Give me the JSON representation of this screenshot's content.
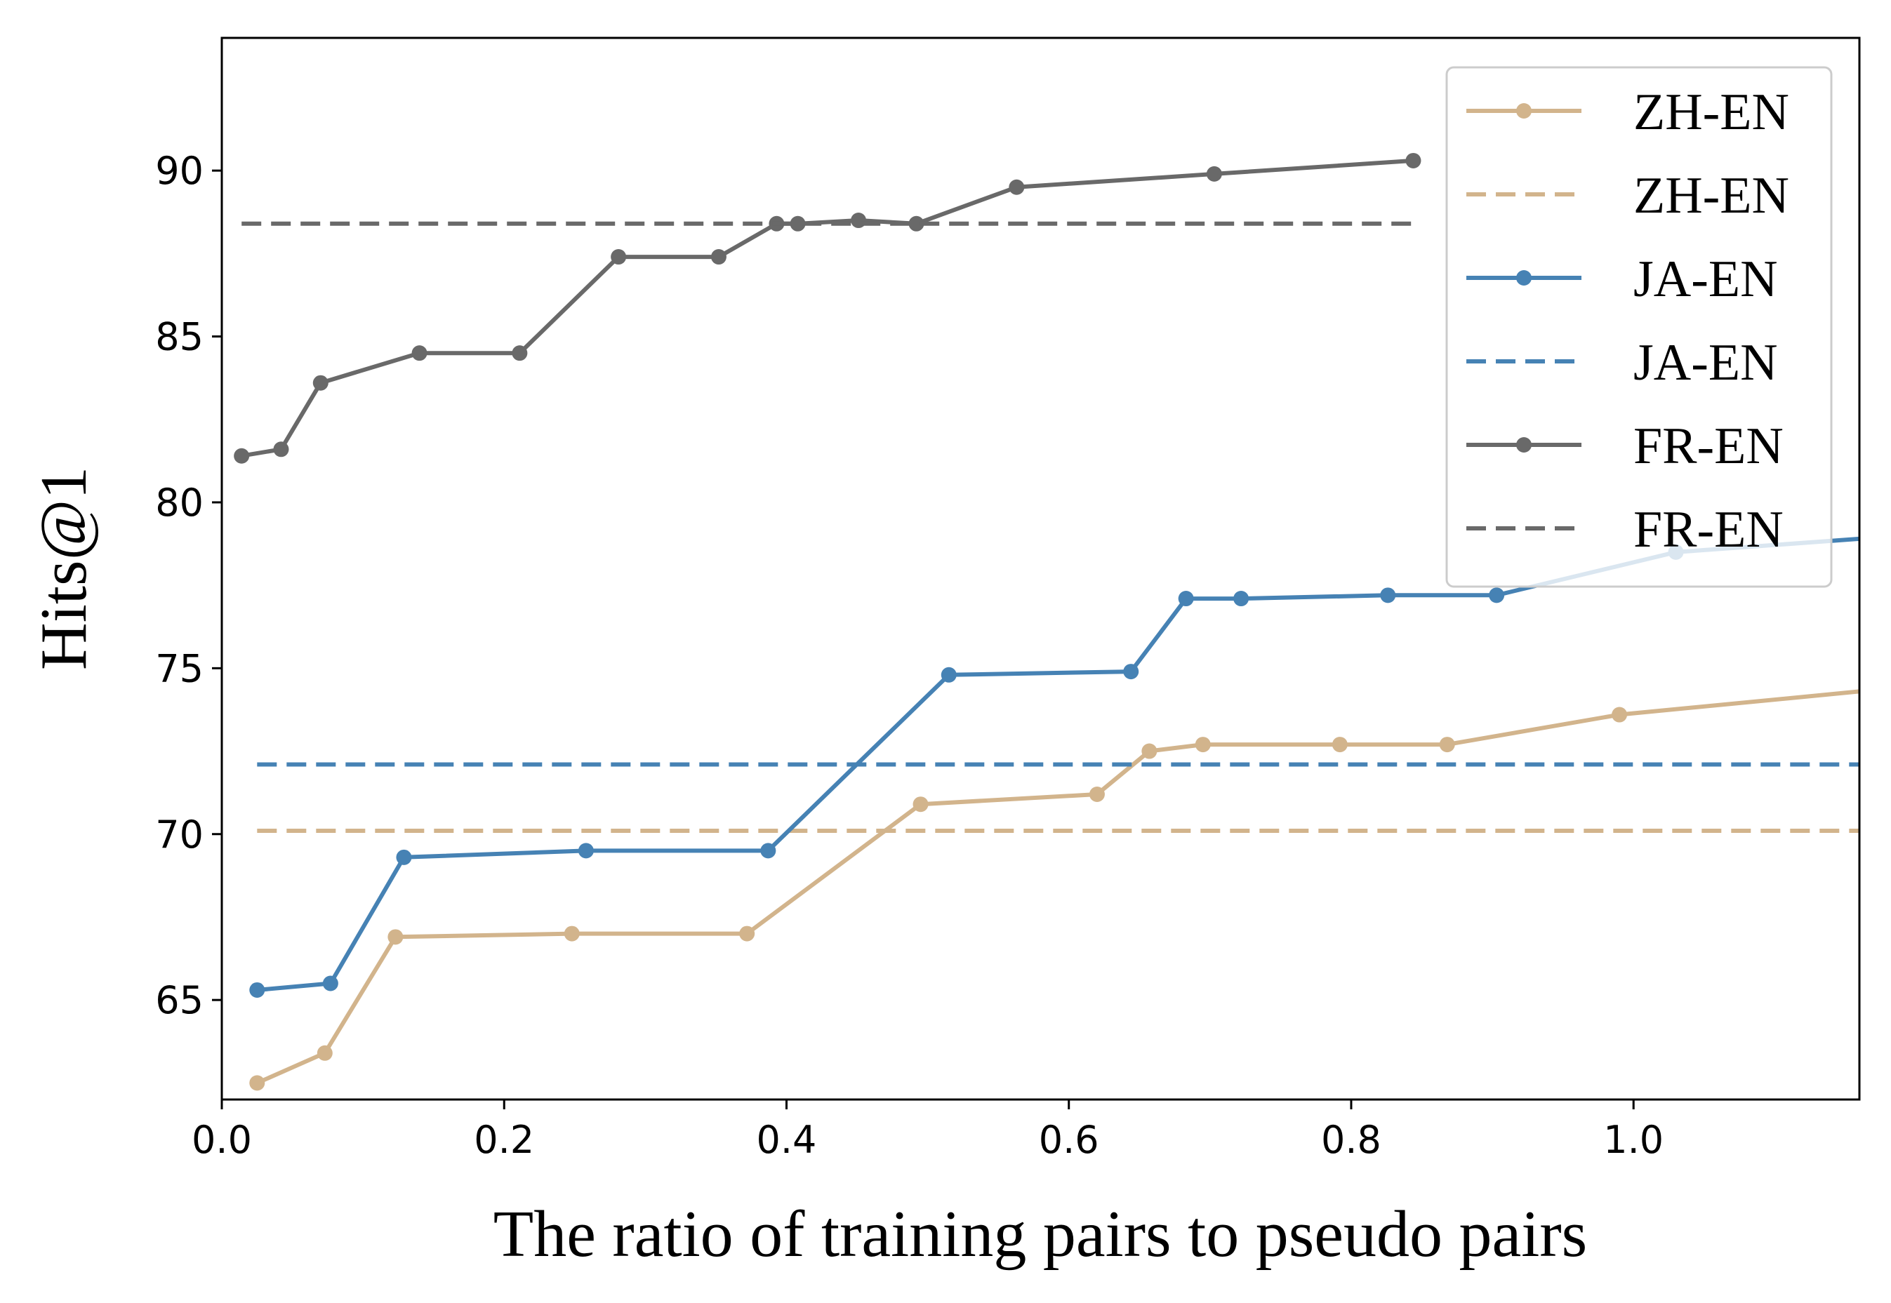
{
  "chart_data": {
    "type": "line",
    "xlabel": "The ratio of training pairs to pseudo pairs",
    "ylabel": "Hits@1",
    "xlim": [
      0.0,
      1.16
    ],
    "ylim": [
      62.0,
      94.0
    ],
    "xticks": [
      0.0,
      0.2,
      0.4,
      0.6,
      0.8,
      1.0
    ],
    "xtick_labels": [
      "0.0",
      "0.2",
      "0.4",
      "0.6",
      "0.8",
      "1.0"
    ],
    "yticks": [
      65,
      70,
      75,
      80,
      85,
      90
    ],
    "ytick_labels": [
      "65",
      "70",
      "75",
      "80",
      "85",
      "90"
    ],
    "grid": false,
    "legend_position": "top-right",
    "series": [
      {
        "name": "ZH-EN",
        "style": "solid-marker",
        "color": "#d2b48c",
        "x": [
          0.025,
          0.073,
          0.123,
          0.248,
          0.372,
          0.495,
          0.62,
          0.657,
          0.695,
          0.792,
          0.868,
          0.99,
          1.16
        ],
        "y": [
          62.5,
          63.4,
          66.9,
          67.0,
          67.0,
          70.9,
          71.2,
          72.5,
          72.7,
          72.7,
          72.7,
          73.6,
          74.3
        ]
      },
      {
        "name": "ZH-EN",
        "style": "dashed",
        "color": "#d2b48c",
        "x": [
          0.025,
          1.16
        ],
        "y": [
          70.1,
          70.1
        ]
      },
      {
        "name": "JA-EN",
        "style": "solid-marker",
        "color": "#4682b4",
        "x": [
          0.025,
          0.077,
          0.129,
          0.258,
          0.387,
          0.515,
          0.644,
          0.683,
          0.722,
          0.826,
          0.903,
          1.03,
          1.16
        ],
        "y": [
          65.3,
          65.5,
          69.3,
          69.5,
          69.5,
          74.8,
          74.9,
          77.1,
          77.1,
          77.2,
          77.2,
          78.5,
          78.9
        ]
      },
      {
        "name": "JA-EN",
        "style": "dashed",
        "color": "#4682b4",
        "x": [
          0.025,
          1.16
        ],
        "y": [
          72.1,
          72.1
        ]
      },
      {
        "name": "FR-EN",
        "style": "solid-marker",
        "color": "#696969",
        "x": [
          0.014,
          0.042,
          0.07,
          0.14,
          0.211,
          0.281,
          0.352,
          0.393,
          0.408,
          0.451,
          0.492,
          0.563,
          0.703,
          0.844
        ],
        "y": [
          81.4,
          81.6,
          83.6,
          84.5,
          84.5,
          87.4,
          87.4,
          88.4,
          88.4,
          88.5,
          88.4,
          89.5,
          89.9,
          90.3
        ]
      },
      {
        "name": "FR-EN",
        "style": "dashed",
        "color": "#696969",
        "x": [
          0.014,
          0.844
        ],
        "y": [
          88.4,
          88.4
        ]
      }
    ]
  }
}
